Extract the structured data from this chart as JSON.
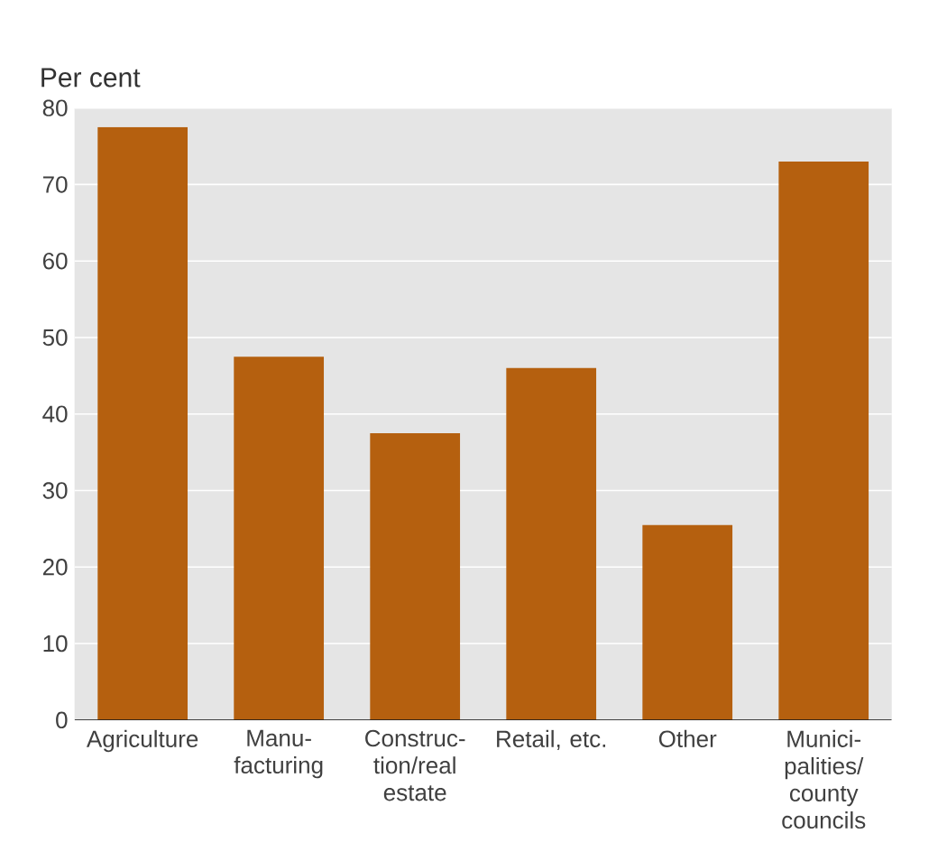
{
  "chart_data": {
    "type": "bar",
    "ylabel": "Per cent",
    "categories": [
      "Agriculture",
      "Manu-facturing",
      "Construc-tion/real estate",
      "Retail, etc.",
      "Other",
      "Munici-palities/ county councils"
    ],
    "values": [
      77.5,
      47.5,
      37.5,
      46,
      25.5,
      73
    ],
    "color": "#b5600f",
    "ylim": [
      0,
      80
    ],
    "yticks": [
      0,
      10,
      20,
      30,
      40,
      50,
      60,
      70,
      80
    ],
    "grid": "y"
  }
}
